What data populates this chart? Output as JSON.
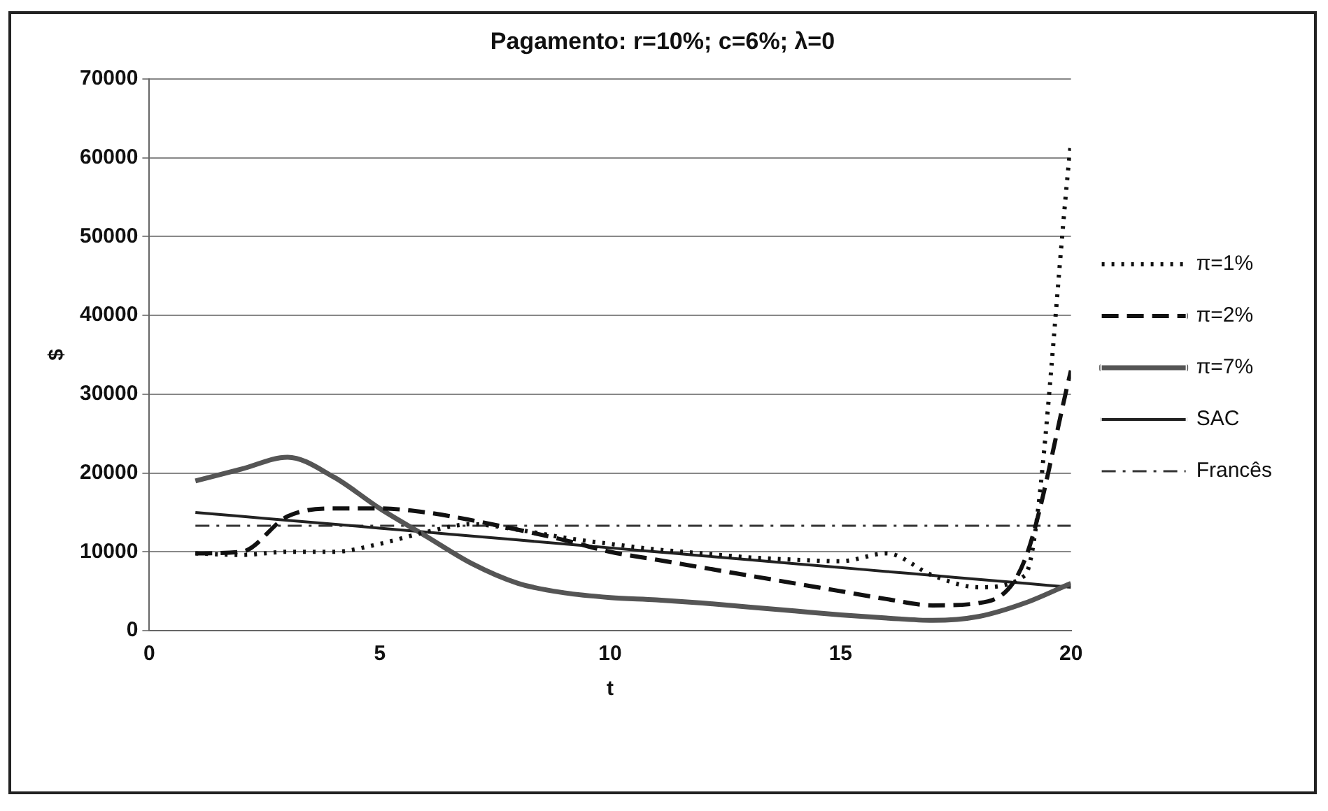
{
  "chart_data": {
    "type": "line",
    "title": "Pagamento: r=10%; c=6%; λ=0",
    "xlabel": "t",
    "ylabel": "$",
    "x": [
      1,
      2,
      3,
      4,
      5,
      6,
      7,
      8,
      9,
      10,
      11,
      12,
      13,
      14,
      15,
      16,
      17,
      18,
      19,
      20
    ],
    "xlim": [
      0,
      20
    ],
    "xticks": [
      0,
      5,
      10,
      15,
      20
    ],
    "ylim": [
      0,
      70000
    ],
    "yticks": [
      0,
      10000,
      20000,
      30000,
      40000,
      50000,
      60000,
      70000
    ],
    "grid": "y",
    "legend": "right",
    "marker": "none",
    "series": [
      {
        "name": "π=1%",
        "color": "#111111",
        "line_style": "dotted",
        "values": [
          9800,
          9600,
          10000,
          10000,
          11000,
          12500,
          13500,
          12800,
          11800,
          11000,
          10300,
          9800,
          9300,
          9000,
          8800,
          9800,
          7000,
          5500,
          7000,
          62000
        ]
      },
      {
        "name": "π=2%",
        "color": "#111111",
        "line_style": "dashed",
        "values": [
          9800,
          10000,
          14500,
          15500,
          15500,
          15000,
          14000,
          12800,
          11500,
          10000,
          9000,
          8000,
          7000,
          6000,
          5000,
          4000,
          3200,
          3500,
          9000,
          33000
        ]
      },
      {
        "name": "π=7%",
        "color": "#555555",
        "line_style": "solid",
        "values": [
          19000,
          20500,
          22000,
          19500,
          15500,
          12000,
          8500,
          6000,
          4800,
          4200,
          3900,
          3500,
          3000,
          2500,
          2000,
          1600,
          1300,
          1800,
          3500,
          6000
        ]
      },
      {
        "name": "SAC",
        "color": "#222222",
        "line_style": "solid",
        "values": [
          15000,
          14500,
          14000,
          13500,
          13000,
          12500,
          12000,
          11500,
          11000,
          10500,
          10000,
          9500,
          9000,
          8500,
          8000,
          7500,
          7000,
          6500,
          6000,
          5500
        ]
      },
      {
        "name": "Francês",
        "color": "#333333",
        "line_style": "dashdot",
        "values": [
          13300,
          13300,
          13300,
          13300,
          13300,
          13300,
          13300,
          13300,
          13300,
          13300,
          13300,
          13300,
          13300,
          13300,
          13300,
          13300,
          13300,
          13300,
          13300,
          13300
        ]
      }
    ]
  }
}
